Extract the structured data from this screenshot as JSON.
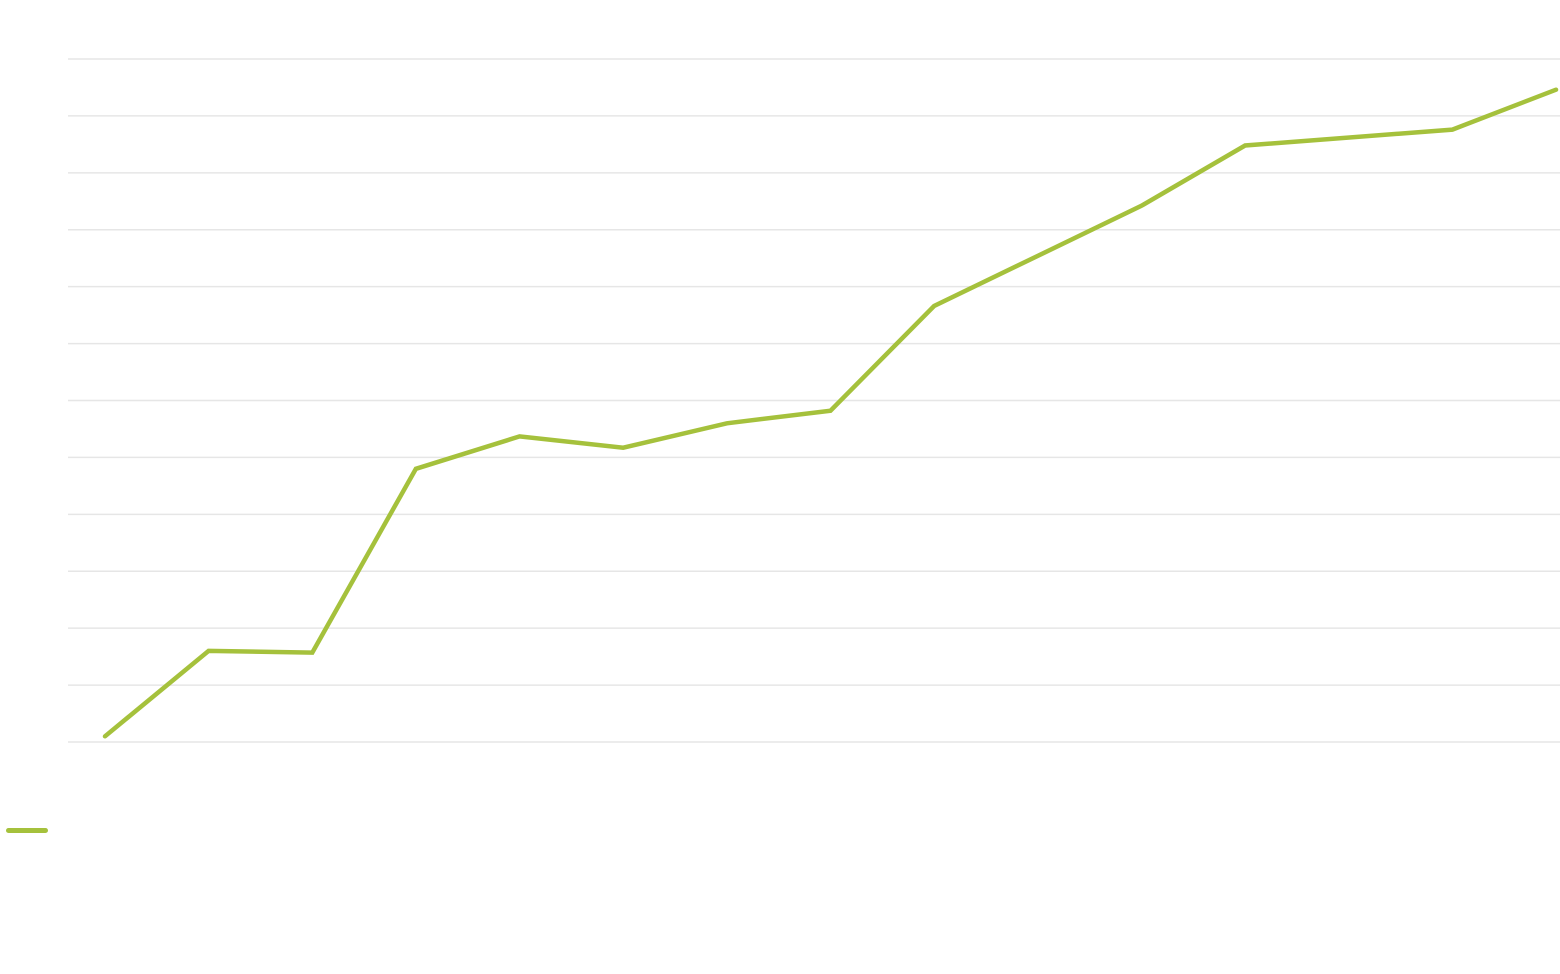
{
  "colors": {
    "series": "#a5c13c",
    "grid": "#e6e6e6",
    "background": "#ffffff"
  },
  "chart_data": {
    "type": "line",
    "grid": true,
    "gridline_count": 13,
    "legend_position": "bottom-left",
    "ylim": [
      0,
      12
    ],
    "x": [
      0,
      1,
      2,
      3,
      4,
      5,
      6,
      7,
      8,
      10,
      11,
      13,
      14
    ],
    "series": [
      {
        "values": [
          0.1,
          1.6,
          1.57,
          4.8,
          5.37,
          5.17,
          5.6,
          5.82,
          7.66,
          9.42,
          10.48,
          10.76,
          11.46
        ]
      }
    ]
  }
}
